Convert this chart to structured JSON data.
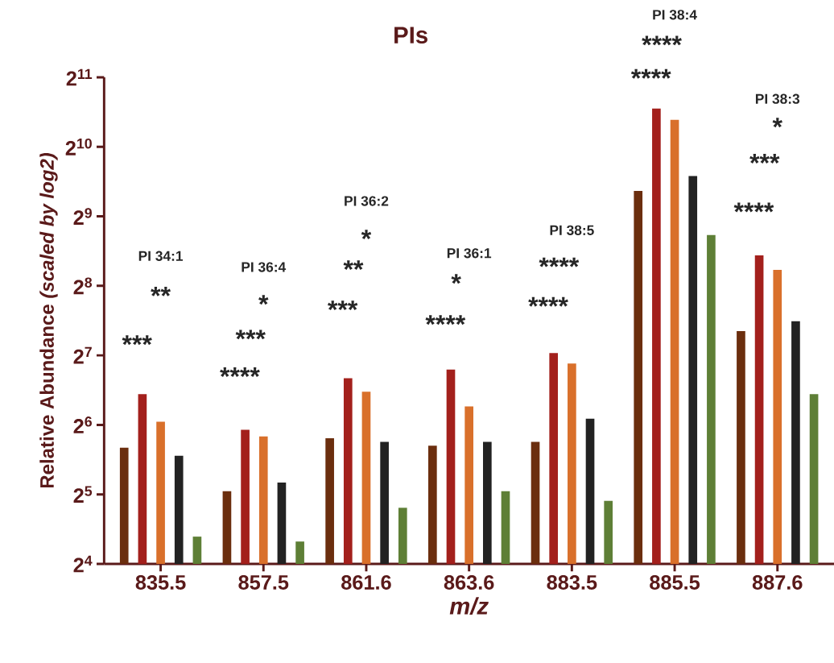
{
  "chart_data": {
    "type": "bar",
    "title": "PIs",
    "xlabel": "m/z",
    "ylabel": "Relative Abundance *(scaled by log2)*",
    "categories": [
      "835.5",
      "857.5",
      "861.6",
      "863.6",
      "883.5",
      "885.5",
      "887.6"
    ],
    "log": "y",
    "ylim": [
      16,
      2048
    ],
    "yticks": [
      {
        "value": 16,
        "label": "2$^{4}$"
      },
      {
        "value": 32,
        "label": "2$^{5}$"
      },
      {
        "value": 64,
        "label": "2$^{6}$"
      },
      {
        "value": 128,
        "label": "2$^{7}$"
      },
      {
        "value": 256,
        "label": "2$^{8}$"
      },
      {
        "value": 512,
        "label": "2$^{9}$"
      },
      {
        "value": 1024,
        "label": "2$^{10}$"
      },
      {
        "value": 2048,
        "label": "2$^{11}$"
      }
    ],
    "series": [
      {
        "color": "#6b2e0e",
        "values": [
          51,
          33,
          56,
          52,
          54,
          660,
          163
        ]
      },
      {
        "color": "#a3201c",
        "values": [
          87,
          61,
          102,
          111,
          131,
          1500,
          347
        ]
      },
      {
        "color": "#d9702b",
        "values": [
          66,
          57,
          89,
          77,
          118,
          1340,
          300
        ]
      },
      {
        "color": "#222222",
        "values": [
          47,
          36,
          54,
          54,
          68,
          765,
          180
        ]
      },
      {
        "color": "#5e7f36",
        "values": [
          21,
          20,
          28,
          33,
          30,
          425,
          87
        ]
      }
    ],
    "annotations": [
      "PI 34:1",
      "***",
      "**",
      "PI 36:4",
      "****",
      "***",
      "*",
      "PI 36:2",
      "***",
      "**",
      "*",
      "PI 36:1",
      "****",
      "*",
      "PI 38:5",
      "****",
      "****",
      "PI 38:4",
      "****",
      "****",
      "PI 38:3",
      "****",
      "***",
      "*"
    ]
  }
}
